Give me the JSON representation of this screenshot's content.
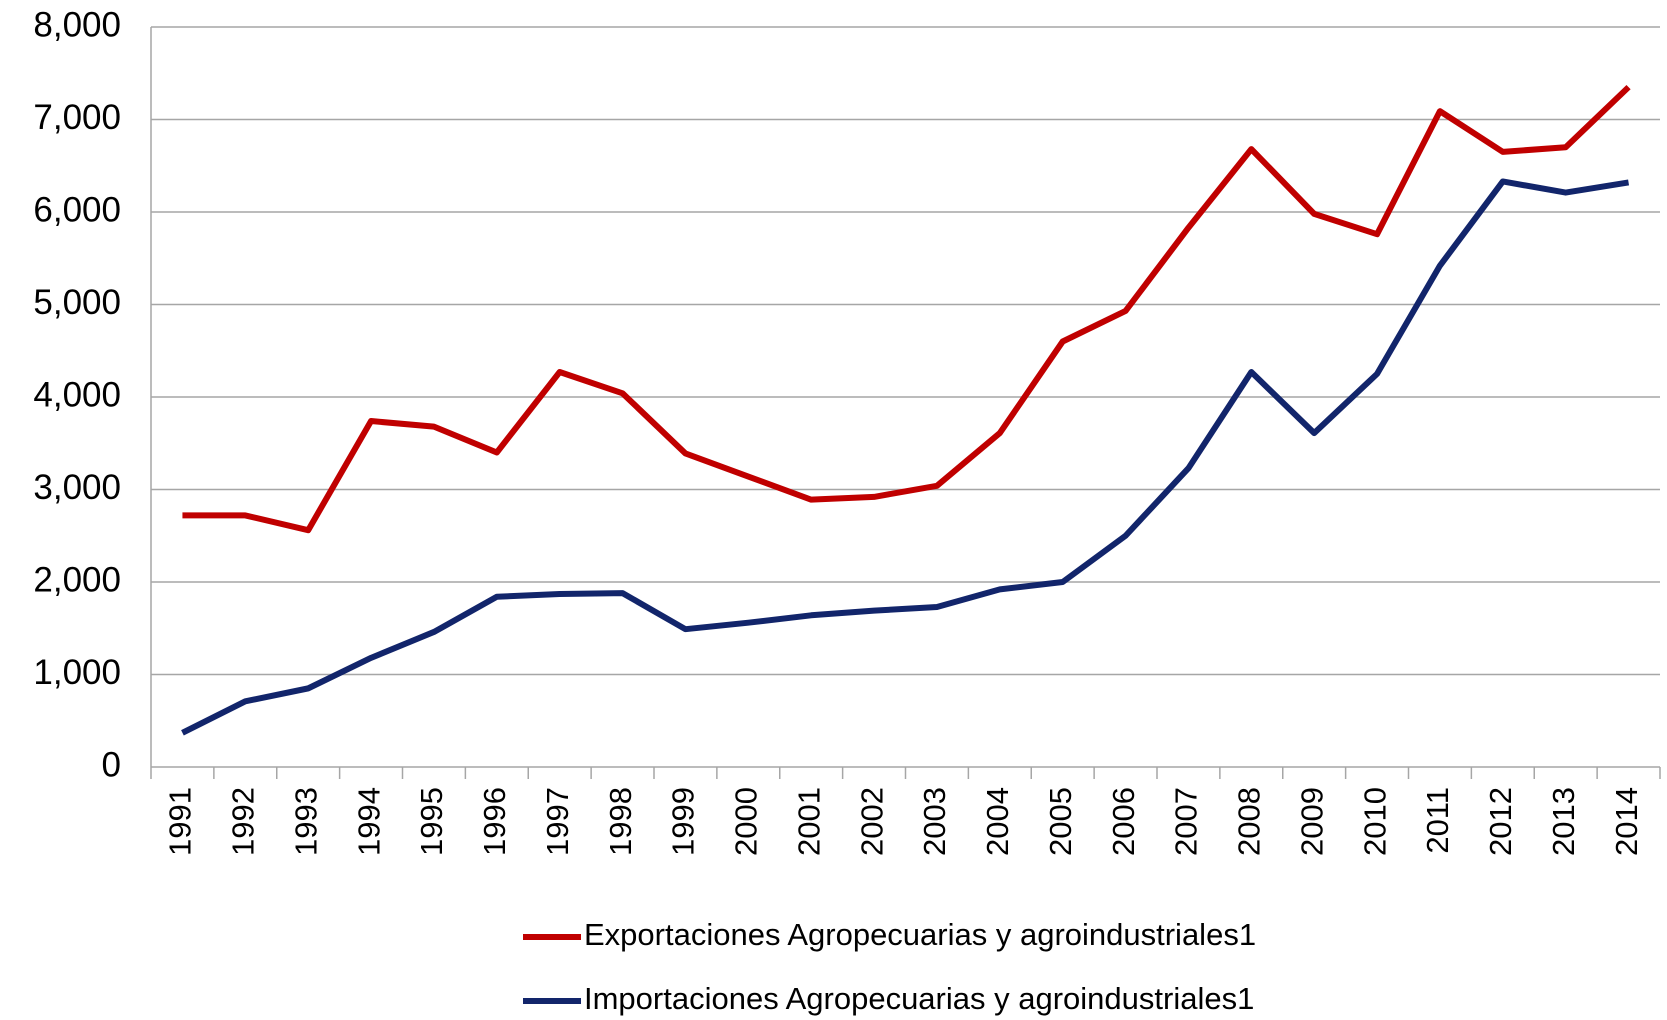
{
  "chart_data": {
    "type": "line",
    "categories": [
      "1991",
      "1992",
      "1993",
      "1994",
      "1995",
      "1996",
      "1997",
      "1998",
      "1999",
      "2000",
      "2001",
      "2002",
      "2003",
      "2004",
      "2005",
      "2006",
      "2007",
      "2008",
      "2009",
      "2010",
      "2011",
      "2012",
      "2013",
      "2014"
    ],
    "series": [
      {
        "name": "Exportaciones Agropecuarias y agroindustriales1",
        "color": "#c00000",
        "values": [
          2720,
          2720,
          2560,
          3740,
          3680,
          3400,
          4270,
          4040,
          3390,
          3140,
          2890,
          2920,
          3040,
          3610,
          4600,
          4930,
          5830,
          6680,
          5980,
          5760,
          7090,
          6650,
          6700,
          7350
        ]
      },
      {
        "name": "Importaciones Agropecuarias y agroindustriales1",
        "color": "#12256b",
        "values": [
          370,
          710,
          850,
          1180,
          1460,
          1840,
          1870,
          1880,
          1490,
          1560,
          1640,
          1690,
          1730,
          1920,
          2000,
          2500,
          3230,
          4270,
          3610,
          4250,
          5420,
          6330,
          6210,
          6320
        ]
      }
    ],
    "ylim": [
      0,
      8000
    ],
    "yticks": [
      0,
      {
        "value": 1000,
        "label": "1,000"
      },
      {
        "value": 2000,
        "label": "2,000"
      },
      {
        "value": 3000,
        "label": "3,000"
      },
      {
        "value": 4000,
        "label": "4,000"
      },
      {
        "value": 5000,
        "label": "5,000"
      },
      {
        "value": 6000,
        "label": "6,000"
      },
      {
        "value": 7000,
        "label": "7,000"
      },
      {
        "value": 8000,
        "label": "8,000"
      }
    ],
    "grid": true,
    "legend": "bottom"
  }
}
